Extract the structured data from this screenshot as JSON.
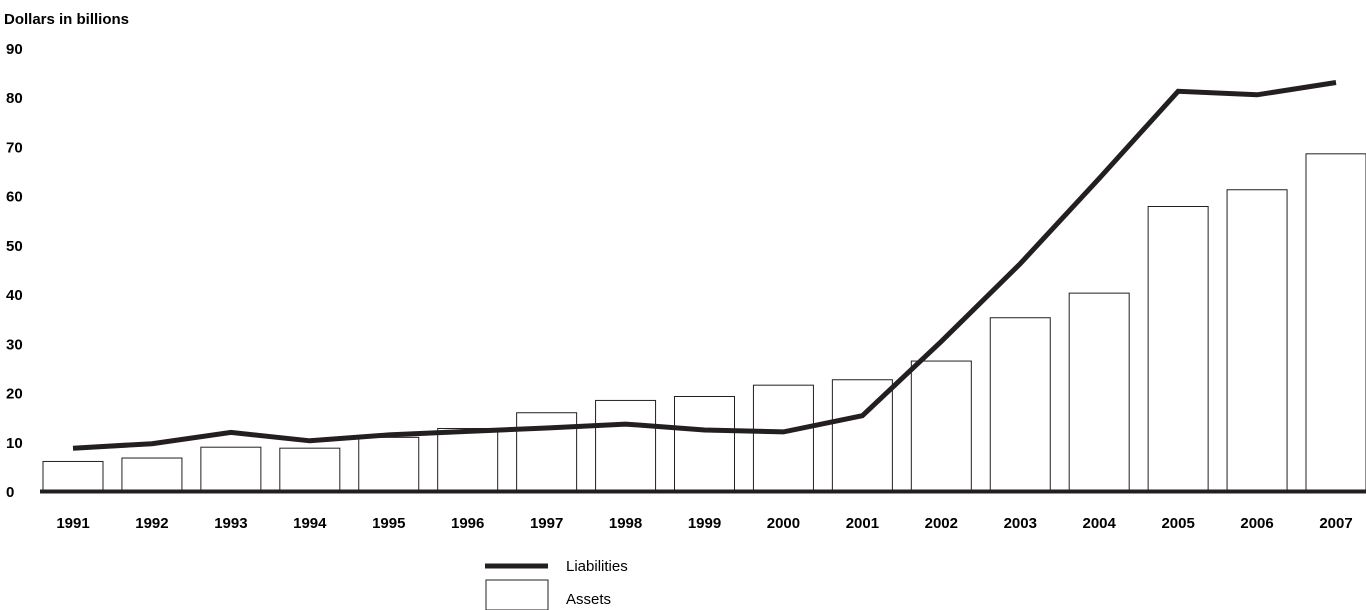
{
  "chart_data": {
    "type": "bar",
    "title": "",
    "xlabel": "",
    "ylabel": "Dollars in billions",
    "ylim": [
      0,
      90
    ],
    "yticks": [
      0,
      10,
      20,
      30,
      40,
      50,
      60,
      70,
      80,
      90
    ],
    "grid": false,
    "legend_position": "bottom-center",
    "categories": [
      "1991",
      "1992",
      "1993",
      "1994",
      "1995",
      "1996",
      "1997",
      "1998",
      "1999",
      "2000",
      "2001",
      "2002",
      "2003",
      "2004",
      "2005",
      "2006",
      "2007"
    ],
    "series": [
      {
        "name": "Assets",
        "render": "bar",
        "color": "#ffffff",
        "values": [
          6.0,
          6.7,
          8.9,
          8.7,
          10.9,
          12.7,
          15.9,
          18.4,
          19.2,
          21.5,
          22.6,
          26.4,
          35.2,
          40.2,
          57.8,
          61.2,
          68.5
        ]
      },
      {
        "name": "Liabilities",
        "render": "line",
        "color": "#231f20",
        "values": [
          8.7,
          9.6,
          11.9,
          10.2,
          11.4,
          12.1,
          12.8,
          13.6,
          12.4,
          12.0,
          15.3,
          30.4,
          46.2,
          63.5,
          81.2,
          80.5,
          83.0
        ]
      }
    ]
  }
}
